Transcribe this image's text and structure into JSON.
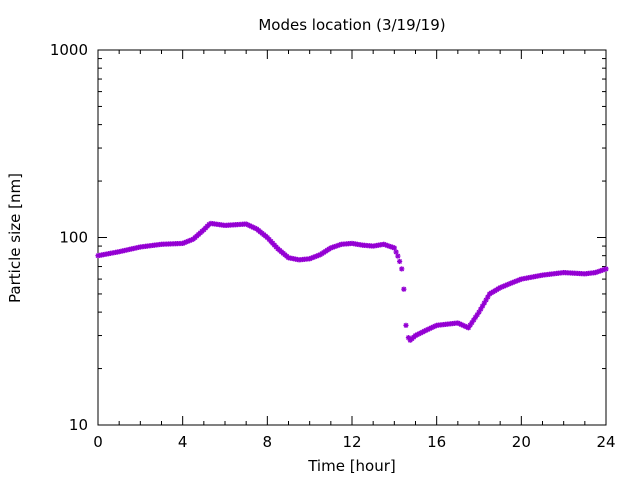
{
  "chart_data": {
    "type": "scatter",
    "title": "Modes location (3/19/19)",
    "xlabel": "Time [hour]",
    "ylabel": "Particle size [nm]",
    "xlim": [
      0,
      24
    ],
    "ylim": [
      10,
      1000
    ],
    "yscale": "log",
    "grid": false,
    "legend": "none",
    "marker_color": "#9400d3",
    "x_ticks": [
      {
        "value": 0,
        "label": "0"
      },
      {
        "value": 4,
        "label": "4"
      },
      {
        "value": 8,
        "label": "8"
      },
      {
        "value": 12,
        "label": "12"
      },
      {
        "value": 16,
        "label": "16"
      },
      {
        "value": 20,
        "label": "20"
      },
      {
        "value": 24,
        "label": "24"
      }
    ],
    "y_ticks": [
      {
        "value": 10,
        "label": "10"
      },
      {
        "value": 100,
        "label": "100"
      },
      {
        "value": 1000,
        "label": "1000"
      }
    ],
    "anchors": [
      [
        0.0,
        80
      ],
      [
        1.0,
        84
      ],
      [
        2.0,
        89
      ],
      [
        3.0,
        92
      ],
      [
        4.0,
        93
      ],
      [
        4.5,
        98
      ],
      [
        5.0,
        110
      ],
      [
        5.3,
        119
      ],
      [
        6.0,
        116
      ],
      [
        7.0,
        118
      ],
      [
        7.5,
        111
      ],
      [
        8.0,
        100
      ],
      [
        8.5,
        87
      ],
      [
        9.0,
        78
      ],
      [
        9.5,
        76
      ],
      [
        10.0,
        77
      ],
      [
        10.5,
        81
      ],
      [
        11.0,
        88
      ],
      [
        11.5,
        92
      ],
      [
        12.0,
        93
      ],
      [
        12.5,
        91
      ],
      [
        13.0,
        90
      ],
      [
        13.5,
        92
      ],
      [
        14.0,
        88
      ],
      [
        14.2,
        78
      ],
      [
        14.35,
        68
      ],
      [
        14.45,
        53
      ],
      [
        14.55,
        34
      ],
      [
        14.7,
        28
      ],
      [
        15.0,
        30
      ],
      [
        15.5,
        32
      ],
      [
        16.0,
        34
      ],
      [
        17.0,
        35
      ],
      [
        17.5,
        33
      ],
      [
        18.0,
        40
      ],
      [
        18.5,
        50
      ],
      [
        19.0,
        54
      ],
      [
        19.5,
        57
      ],
      [
        20.0,
        60
      ],
      [
        21.0,
        63
      ],
      [
        22.0,
        65
      ],
      [
        23.0,
        64
      ],
      [
        23.5,
        65
      ],
      [
        24.0,
        68
      ]
    ]
  }
}
